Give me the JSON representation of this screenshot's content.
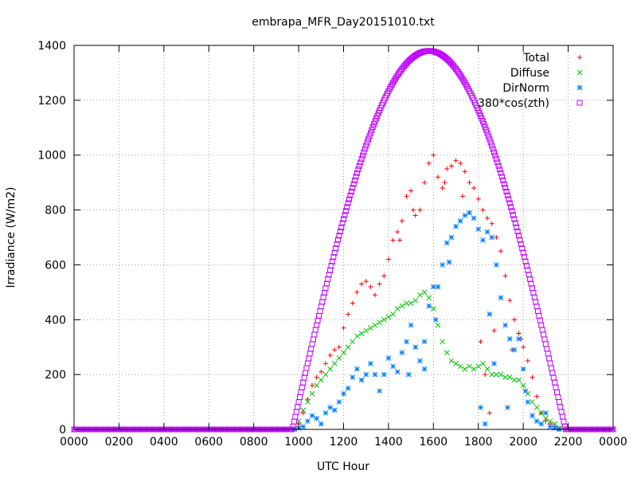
{
  "chart_data": {
    "type": "scatter",
    "title": "embrapa_MFR_Day20151010.txt",
    "xlabel": "UTC Hour",
    "ylabel": "Irradiance (W/m2)",
    "xlim": [
      0,
      24
    ],
    "ylim": [
      0,
      1400
    ],
    "grid": true,
    "legend_position": "top-right",
    "x_ticks": [
      {
        "value": 0,
        "label": "0000"
      },
      {
        "value": 2,
        "label": "0200"
      },
      {
        "value": 4,
        "label": "0400"
      },
      {
        "value": 6,
        "label": "0600"
      },
      {
        "value": 8,
        "label": "0800"
      },
      {
        "value": 10,
        "label": "1000"
      },
      {
        "value": 12,
        "label": "1200"
      },
      {
        "value": 14,
        "label": "1400"
      },
      {
        "value": 16,
        "label": "1600"
      },
      {
        "value": 18,
        "label": "1800"
      },
      {
        "value": 20,
        "label": "2000"
      },
      {
        "value": 22,
        "label": "2200"
      },
      {
        "value": 24,
        "label": "0000"
      }
    ],
    "y_ticks": [
      0,
      200,
      400,
      600,
      800,
      1000,
      1200,
      1400
    ],
    "series": [
      {
        "name": "Total",
        "marker": "+",
        "color": "#ff0000",
        "points": [
          [
            9.8,
            2
          ],
          [
            10.0,
            20
          ],
          [
            10.2,
            60
          ],
          [
            10.4,
            110
          ],
          [
            10.6,
            160
          ],
          [
            10.8,
            190
          ],
          [
            11.0,
            210
          ],
          [
            11.2,
            240
          ],
          [
            11.4,
            270
          ],
          [
            11.6,
            290
          ],
          [
            11.8,
            300
          ],
          [
            12.0,
            370
          ],
          [
            12.2,
            420
          ],
          [
            12.4,
            460
          ],
          [
            12.6,
            500
          ],
          [
            12.8,
            530
          ],
          [
            13.0,
            540
          ],
          [
            13.2,
            520
          ],
          [
            13.4,
            490
          ],
          [
            13.6,
            530
          ],
          [
            13.8,
            560
          ],
          [
            14.0,
            620
          ],
          [
            14.2,
            690
          ],
          [
            14.4,
            720
          ],
          [
            14.6,
            760
          ],
          [
            14.8,
            850
          ],
          [
            15.0,
            870
          ],
          [
            15.2,
            780
          ],
          [
            15.4,
            800
          ],
          [
            15.6,
            900
          ],
          [
            15.8,
            970
          ],
          [
            16.0,
            1000
          ],
          [
            16.2,
            920
          ],
          [
            16.4,
            880
          ],
          [
            16.6,
            950
          ],
          [
            16.8,
            960
          ],
          [
            17.0,
            980
          ],
          [
            17.2,
            970
          ],
          [
            17.4,
            940
          ],
          [
            17.6,
            900
          ],
          [
            17.8,
            880
          ],
          [
            18.0,
            840
          ],
          [
            18.2,
            800
          ],
          [
            18.4,
            770
          ],
          [
            18.6,
            750
          ],
          [
            18.8,
            700
          ],
          [
            19.0,
            650
          ],
          [
            19.2,
            560
          ],
          [
            19.4,
            470
          ],
          [
            19.6,
            400
          ],
          [
            19.8,
            350
          ],
          [
            20.0,
            300
          ],
          [
            20.2,
            250
          ],
          [
            20.4,
            190
          ],
          [
            20.6,
            120
          ],
          [
            20.8,
            60
          ],
          [
            21.0,
            30
          ],
          [
            21.2,
            20
          ],
          [
            21.4,
            10
          ],
          [
            21.6,
            2
          ],
          [
            14.5,
            690
          ],
          [
            15.1,
            800
          ],
          [
            16.5,
            900
          ],
          [
            18.1,
            320
          ],
          [
            18.3,
            200
          ],
          [
            18.5,
            60
          ],
          [
            18.7,
            360
          ],
          [
            19.5,
            290
          ],
          [
            19.9,
            330
          ],
          [
            17.3,
            850
          ]
        ]
      },
      {
        "name": "Diffuse",
        "marker": "x",
        "color": "#00c000",
        "points": [
          [
            9.8,
            2
          ],
          [
            10.0,
            30
          ],
          [
            10.2,
            70
          ],
          [
            10.4,
            100
          ],
          [
            10.6,
            130
          ],
          [
            10.8,
            160
          ],
          [
            11.0,
            180
          ],
          [
            11.2,
            200
          ],
          [
            11.4,
            220
          ],
          [
            11.6,
            240
          ],
          [
            11.8,
            260
          ],
          [
            12.0,
            280
          ],
          [
            12.2,
            300
          ],
          [
            12.4,
            320
          ],
          [
            12.6,
            340
          ],
          [
            12.8,
            350
          ],
          [
            13.0,
            360
          ],
          [
            13.2,
            370
          ],
          [
            13.4,
            380
          ],
          [
            13.6,
            390
          ],
          [
            13.8,
            400
          ],
          [
            14.0,
            410
          ],
          [
            14.2,
            420
          ],
          [
            14.4,
            440
          ],
          [
            14.6,
            450
          ],
          [
            14.8,
            460
          ],
          [
            15.0,
            460
          ],
          [
            15.2,
            470
          ],
          [
            15.4,
            490
          ],
          [
            15.6,
            500
          ],
          [
            15.8,
            480
          ],
          [
            16.0,
            440
          ],
          [
            16.2,
            380
          ],
          [
            16.4,
            320
          ],
          [
            16.6,
            280
          ],
          [
            16.8,
            250
          ],
          [
            17.0,
            240
          ],
          [
            17.2,
            230
          ],
          [
            17.4,
            220
          ],
          [
            17.6,
            230
          ],
          [
            17.8,
            220
          ],
          [
            18.0,
            230
          ],
          [
            18.2,
            240
          ],
          [
            18.4,
            220
          ],
          [
            18.6,
            200
          ],
          [
            18.8,
            200
          ],
          [
            19.0,
            200
          ],
          [
            19.2,
            190
          ],
          [
            19.4,
            190
          ],
          [
            19.6,
            180
          ],
          [
            19.8,
            180
          ],
          [
            20.0,
            160
          ],
          [
            20.2,
            130
          ],
          [
            20.4,
            100
          ],
          [
            20.6,
            80
          ],
          [
            20.8,
            60
          ],
          [
            21.0,
            40
          ],
          [
            21.2,
            30
          ],
          [
            21.4,
            20
          ],
          [
            21.6,
            5
          ]
        ]
      },
      {
        "name": "DirNorm",
        "marker": "*",
        "color": "#0080ff",
        "points": [
          [
            9.8,
            0
          ],
          [
            10.0,
            5
          ],
          [
            10.2,
            10
          ],
          [
            10.4,
            30
          ],
          [
            10.6,
            50
          ],
          [
            10.8,
            40
          ],
          [
            11.0,
            20
          ],
          [
            11.2,
            60
          ],
          [
            11.4,
            80
          ],
          [
            11.6,
            70
          ],
          [
            11.8,
            100
          ],
          [
            12.0,
            130
          ],
          [
            12.2,
            150
          ],
          [
            12.4,
            190
          ],
          [
            12.6,
            220
          ],
          [
            12.8,
            180
          ],
          [
            13.0,
            200
          ],
          [
            13.2,
            240
          ],
          [
            13.4,
            200
          ],
          [
            13.6,
            140
          ],
          [
            13.8,
            200
          ],
          [
            14.0,
            260
          ],
          [
            14.2,
            230
          ],
          [
            14.4,
            210
          ],
          [
            14.6,
            280
          ],
          [
            14.8,
            320
          ],
          [
            15.0,
            380
          ],
          [
            15.2,
            300
          ],
          [
            15.4,
            250
          ],
          [
            15.6,
            320
          ],
          [
            15.8,
            450
          ],
          [
            16.0,
            520
          ],
          [
            16.2,
            520
          ],
          [
            16.4,
            600
          ],
          [
            16.6,
            680
          ],
          [
            16.8,
            700
          ],
          [
            17.0,
            740
          ],
          [
            17.2,
            760
          ],
          [
            17.4,
            780
          ],
          [
            17.6,
            790
          ],
          [
            17.8,
            770
          ],
          [
            18.0,
            730
          ],
          [
            18.2,
            690
          ],
          [
            18.4,
            720
          ],
          [
            18.6,
            700
          ],
          [
            18.8,
            600
          ],
          [
            19.0,
            480
          ],
          [
            19.2,
            380
          ],
          [
            19.4,
            330
          ],
          [
            19.6,
            290
          ],
          [
            19.8,
            330
          ],
          [
            20.0,
            220
          ],
          [
            20.2,
            100
          ],
          [
            20.4,
            50
          ],
          [
            20.6,
            30
          ],
          [
            20.8,
            20
          ],
          [
            21.0,
            60
          ],
          [
            21.2,
            10
          ],
          [
            21.4,
            5
          ],
          [
            21.6,
            0
          ],
          [
            15.6,
            220
          ],
          [
            16.1,
            400
          ],
          [
            16.7,
            610
          ],
          [
            18.1,
            80
          ],
          [
            18.3,
            20
          ],
          [
            18.5,
            420
          ],
          [
            18.7,
            240
          ],
          [
            19.3,
            80
          ],
          [
            20.1,
            140
          ],
          [
            14.9,
            200
          ]
        ]
      },
      {
        "name": "380*cos(zth)",
        "marker": "square",
        "color": "#bf00ff",
        "function": {
          "amplitude": 1380,
          "peak_hour": 15.8,
          "start_hour": 9.72,
          "end_hour": 21.88
        }
      }
    ]
  }
}
